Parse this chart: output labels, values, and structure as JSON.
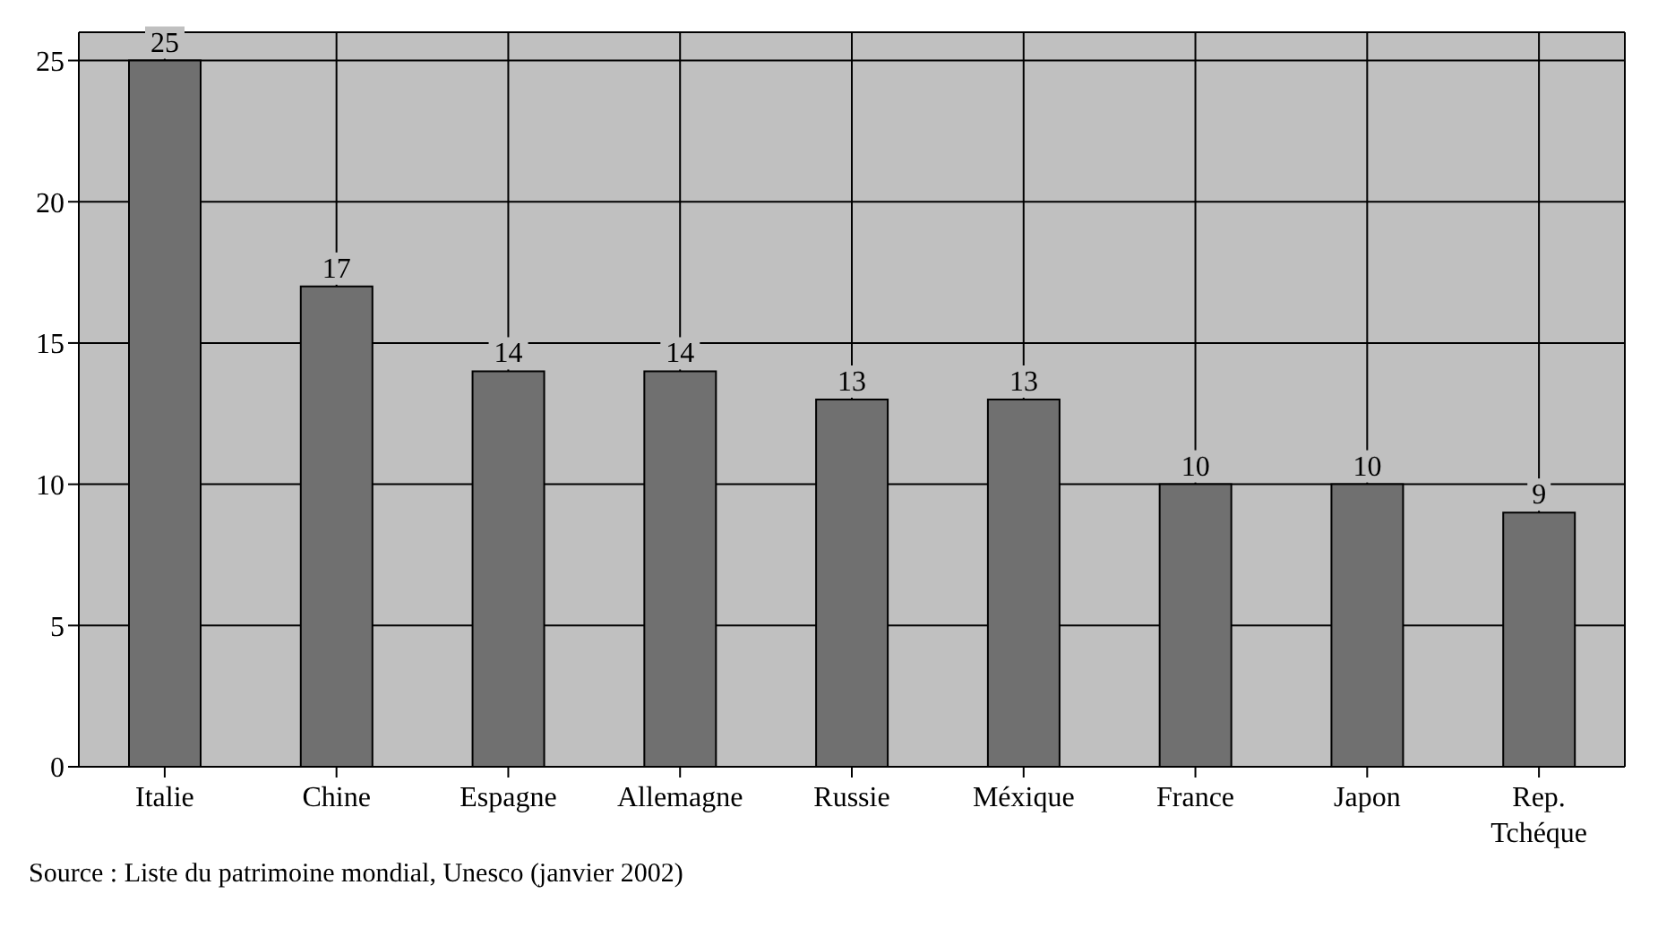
{
  "chart_data": {
    "type": "bar",
    "categories": [
      "Italie",
      "Chine",
      "Espagne",
      "Allemagne",
      "Russie",
      "Méxique",
      "France",
      "Japon",
      "Rep. Tchéque"
    ],
    "values": [
      25,
      17,
      14,
      14,
      13,
      13,
      10,
      10,
      9
    ],
    "color": "#707070",
    "ylim": [
      0,
      26
    ],
    "yticks": [
      0,
      5,
      10,
      15,
      20,
      25
    ],
    "grid": true,
    "data_labels": true,
    "annotations": [
      "Source : Liste du patrimoine mondial, Unesco (janvier 2002)"
    ]
  }
}
